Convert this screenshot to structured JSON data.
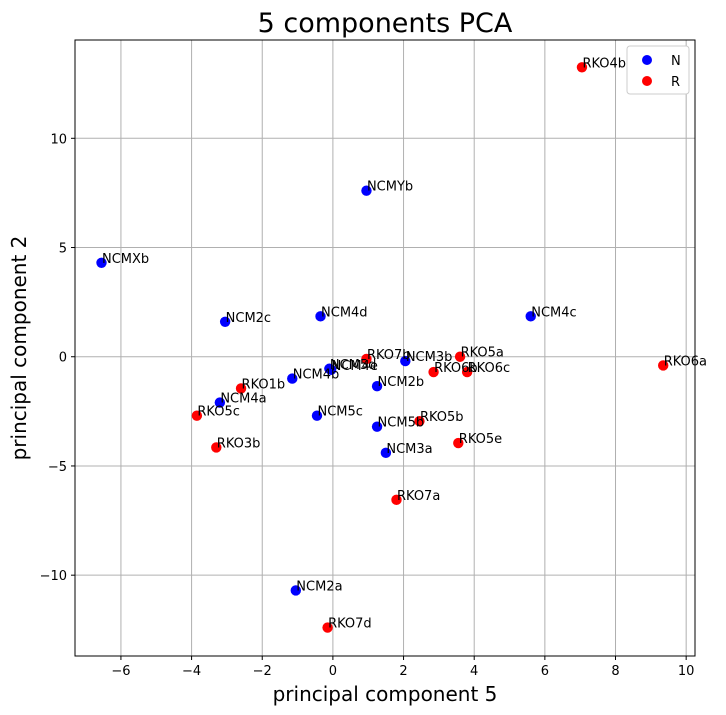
{
  "chart_data": {
    "type": "scatter",
    "title": "5 components PCA",
    "xlabel": "principal component 5",
    "ylabel": "principal component 2",
    "xlim": [
      -7.3,
      10.25
    ],
    "ylim": [
      -13.7,
      14.5
    ],
    "xticks": [
      -6,
      -4,
      -2,
      0,
      2,
      4,
      6,
      8,
      10
    ],
    "yticks": [
      -10,
      -5,
      0,
      5,
      10
    ],
    "grid": true,
    "legend_position": "top-right",
    "series": [
      {
        "name": "N",
        "color": "#0000ff",
        "points": [
          {
            "label": "NCMYb",
            "x": 0.95,
            "y": 7.6
          },
          {
            "label": "NCMXb",
            "x": -6.55,
            "y": 4.3
          },
          {
            "label": "NCM2c",
            "x": -3.05,
            "y": 1.6
          },
          {
            "label": "NCM4d",
            "x": -0.35,
            "y": 1.85
          },
          {
            "label": "NCM4c",
            "x": 5.6,
            "y": 1.85
          },
          {
            "label": "NCM3b",
            "x": 2.05,
            "y": -0.2
          },
          {
            "label": "NCM5d",
            "x": -0.1,
            "y": -0.55
          },
          {
            "label": "NCM4e",
            "x": -0.05,
            "y": -0.6
          },
          {
            "label": "NCM4b",
            "x": -1.15,
            "y": -1.0
          },
          {
            "label": "NCM2b",
            "x": 1.25,
            "y": -1.35
          },
          {
            "label": "NCM4a",
            "x": -3.2,
            "y": -2.1
          },
          {
            "label": "NCM5c",
            "x": -0.45,
            "y": -2.7
          },
          {
            "label": "NCM5b",
            "x": 1.25,
            "y": -3.2
          },
          {
            "label": "NCM3a",
            "x": 1.5,
            "y": -4.4
          },
          {
            "label": "NCM2a",
            "x": -1.05,
            "y": -10.7
          }
        ]
      },
      {
        "name": "R",
        "color": "#ff0000",
        "points": [
          {
            "label": "RKO4b",
            "x": 7.05,
            "y": 13.25
          },
          {
            "label": "RKO6a",
            "x": 9.35,
            "y": -0.4
          },
          {
            "label": "RKO7b",
            "x": 0.95,
            "y": -0.1
          },
          {
            "label": "RKO5a",
            "x": 3.6,
            "y": 0.0
          },
          {
            "label": "RKO6b",
            "x": 2.85,
            "y": -0.7
          },
          {
            "label": "RKO6c",
            "x": 3.8,
            "y": -0.7
          },
          {
            "label": "RKO1b",
            "x": -2.6,
            "y": -1.45
          },
          {
            "label": "RKO5c",
            "x": -3.85,
            "y": -2.7
          },
          {
            "label": "RKO5b",
            "x": 2.45,
            "y": -2.95
          },
          {
            "label": "RKO3b",
            "x": -3.3,
            "y": -4.15
          },
          {
            "label": "RKO5e",
            "x": 3.55,
            "y": -3.95
          },
          {
            "label": "RKO7a",
            "x": 1.8,
            "y": -6.55
          },
          {
            "label": "RKO7d",
            "x": -0.15,
            "y": -12.4
          }
        ]
      }
    ]
  }
}
